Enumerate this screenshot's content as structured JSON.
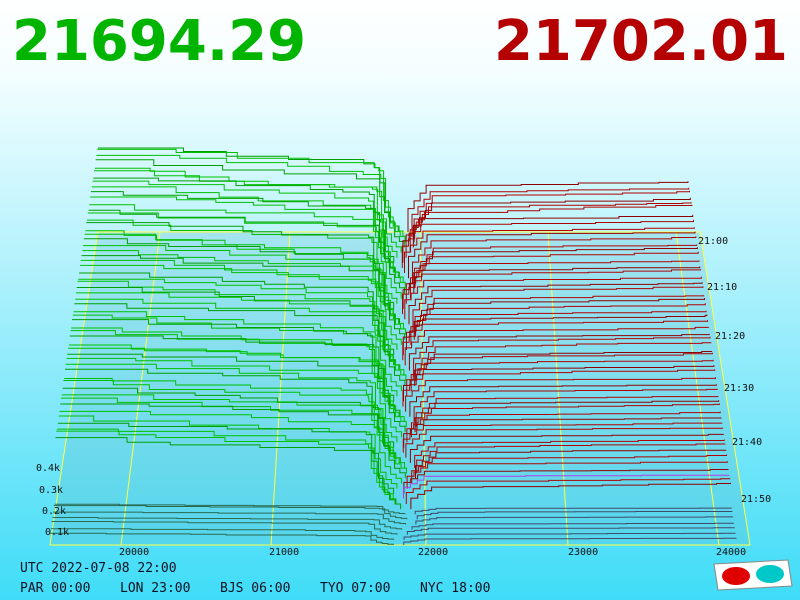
{
  "header": {
    "bid": "21694.29",
    "ask": "21702.01"
  },
  "price_axis": [
    "20000",
    "21000",
    "22000",
    "23000",
    "24000"
  ],
  "depth_axis": [
    "0.4k",
    "0.3k",
    "0.2k",
    "0.1k"
  ],
  "time_axis": [
    "21:00",
    "21:10",
    "21:20",
    "21:30",
    "21:40",
    "21:50"
  ],
  "footer": {
    "utc": "UTC 2022-07-08 22:00",
    "clocks": [
      "PAR 00:00",
      "LON 23:00",
      "BJS 06:00",
      "TYO 07:00",
      "NYC 18:00"
    ]
  }
}
